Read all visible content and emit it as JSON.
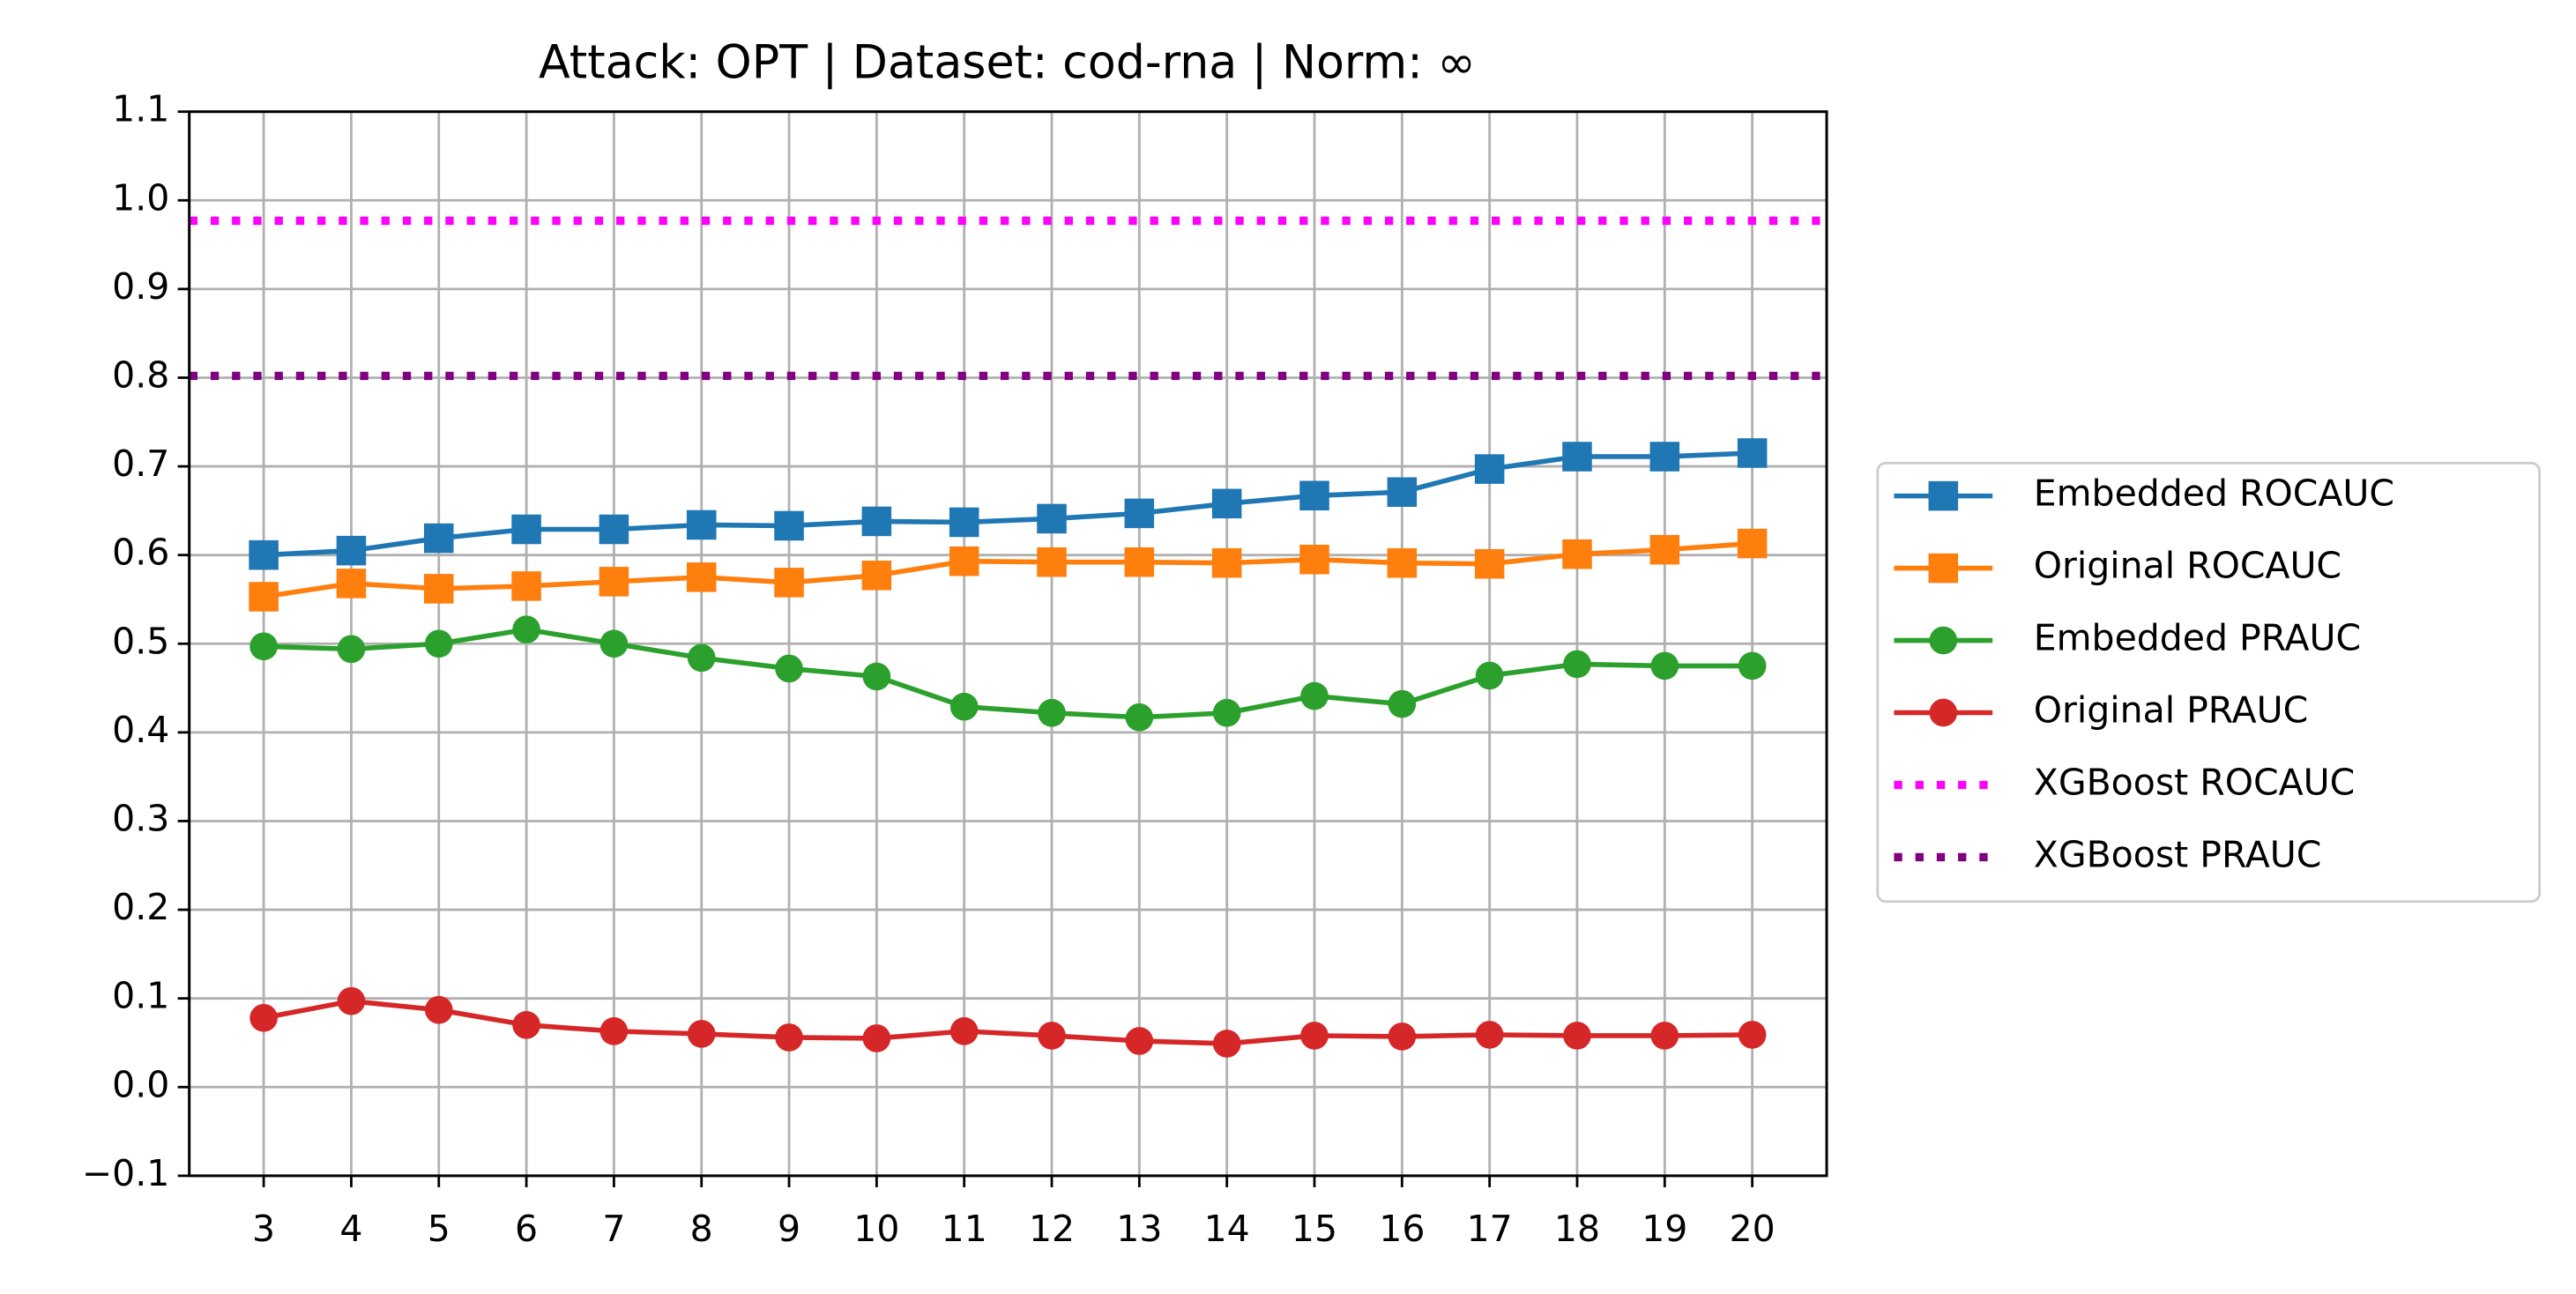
{
  "chart_data": {
    "type": "line",
    "title": "Attack: OPT | Dataset: cod-rna | Norm: ∞",
    "x": [
      3,
      4,
      5,
      6,
      7,
      8,
      9,
      10,
      11,
      12,
      13,
      14,
      15,
      16,
      17,
      18,
      19,
      20
    ],
    "xlim": [
      2.15,
      20.85
    ],
    "xticks": [
      3,
      4,
      5,
      6,
      7,
      8,
      9,
      10,
      11,
      12,
      13,
      14,
      15,
      16,
      17,
      18,
      19,
      20
    ],
    "ylim": [
      -0.1,
      1.1
    ],
    "yticks": [
      {
        "value": -0.1,
        "label": "−0.1"
      },
      {
        "value": 0,
        "label": "0.0"
      },
      0.1,
      0.2,
      0.3,
      0.4,
      0.5,
      0.6,
      0.7,
      0.8,
      0.9,
      {
        "value": 1,
        "label": "1.0"
      },
      1.1
    ],
    "grid": true,
    "legend": "outside right",
    "series": [
      {
        "name": "Embedded ROCAUC",
        "color": "#1f77b4",
        "marker": "square",
        "values": [
          0.6,
          0.605,
          0.619,
          0.629,
          0.629,
          0.634,
          0.633,
          0.638,
          0.637,
          0.641,
          0.647,
          0.658,
          0.667,
          0.671,
          0.697,
          0.711,
          0.711,
          0.715
        ]
      },
      {
        "name": "Original ROCAUC",
        "color": "#ff7f0e",
        "marker": "square",
        "values": [
          0.553,
          0.568,
          0.562,
          0.565,
          0.57,
          0.575,
          0.569,
          0.577,
          0.593,
          0.592,
          0.592,
          0.591,
          0.595,
          0.591,
          0.59,
          0.601,
          0.606,
          0.613
        ]
      },
      {
        "name": "Embedded PRAUC",
        "color": "#2ca02c",
        "marker": "circle",
        "values": [
          0.497,
          0.494,
          0.5,
          0.516,
          0.5,
          0.484,
          0.472,
          0.463,
          0.429,
          0.422,
          0.417,
          0.422,
          0.441,
          0.432,
          0.464,
          0.477,
          0.475,
          0.475
        ]
      },
      {
        "name": "Original PRAUC",
        "color": "#d62728",
        "marker": "circle",
        "values": [
          0.078,
          0.097,
          0.087,
          0.07,
          0.063,
          0.06,
          0.056,
          0.055,
          0.063,
          0.058,
          0.052,
          0.049,
          0.058,
          0.057,
          0.059,
          0.058,
          0.058,
          0.059
        ]
      }
    ],
    "reference_lines": [
      {
        "name": "XGBoost ROCAUC",
        "color": "#ff00ff",
        "value": 0.977
      },
      {
        "name": "XGBoost PRAUC",
        "color": "#800080",
        "value": 0.802
      }
    ]
  }
}
